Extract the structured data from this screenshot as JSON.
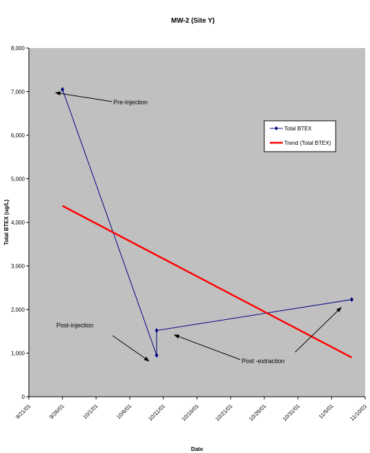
{
  "chart_data": {
    "type": "line",
    "title": "MW-2 (Site Y)",
    "xlabel": "Date",
    "ylabel": "Total BTEX (ug/L)",
    "ylim": [
      0,
      8000
    ],
    "yticks": [
      "0",
      "1,000",
      "2,000",
      "3,000",
      "4,000",
      "5,000",
      "6,000",
      "7,000",
      "8,000"
    ],
    "xlim": [
      "2001-09-21",
      "2001-11-10"
    ],
    "xticks": [
      {
        "date": "2001-09-21",
        "label": "9/21/01"
      },
      {
        "date": "2001-09-26",
        "label": "9/26/01"
      },
      {
        "date": "2001-10-01",
        "label": "10/1/01"
      },
      {
        "date": "2001-10-06",
        "label": "10/6/01"
      },
      {
        "date": "2001-10-11",
        "label": "10/11/01"
      },
      {
        "date": "2001-10-16",
        "label": "10/16/01"
      },
      {
        "date": "2001-10-21",
        "label": "10/21/01"
      },
      {
        "date": "2001-10-26",
        "label": "10/26/01"
      },
      {
        "date": "2001-10-31",
        "label": "10/31/01"
      },
      {
        "date": "2001-11-05",
        "label": "11/5/01"
      },
      {
        "date": "2001-11-10",
        "label": "11/10/01"
      }
    ],
    "grid": false,
    "plot_background": "#c0c0c0",
    "legend_position": "top-right",
    "series": [
      {
        "name": "Total BTEX",
        "color": "#000080",
        "marker": "diamond",
        "points": [
          {
            "date": "2001-09-26",
            "value": 7050
          },
          {
            "date": "2001-10-10",
            "value": 950
          },
          {
            "date": "2001-10-10",
            "value": 1520
          },
          {
            "date": "2001-11-08",
            "value": 2230
          }
        ]
      },
      {
        "name": "Trend (Total BTEX)",
        "color": "#ff0000",
        "marker": "none",
        "points": [
          {
            "date": "2001-09-26",
            "value": 4380
          },
          {
            "date": "2001-11-08",
            "value": 900
          }
        ]
      }
    ],
    "annotations": [
      {
        "text": "Pre-injection",
        "arrow_to": {
          "date": "2001-09-27",
          "value": 7000
        }
      },
      {
        "text": "Post-injection",
        "arrow_to": {
          "date": "2001-10-09",
          "value": 900
        }
      },
      {
        "text": "Post -extraction",
        "arrow_to": [
          {
            "date": "2001-10-11",
            "value": 1400
          },
          {
            "date": "2001-11-06",
            "value": 2090
          }
        ]
      }
    ]
  }
}
